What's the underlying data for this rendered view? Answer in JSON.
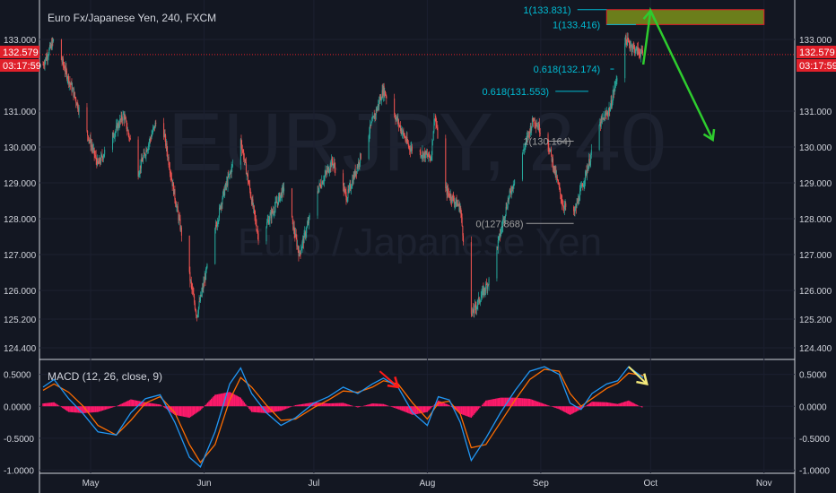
{
  "header": {
    "symbol_title": "Euro Fx/Japanese Yen, 240, FXCM",
    "watermark_symbol": "EURJPY, 240",
    "watermark_name": "Euro / Japanese Yen"
  },
  "price_badges": {
    "last_price": "132.579",
    "countdown": "03:17:59",
    "color": "#e0202a"
  },
  "colors": {
    "background": "#131722",
    "up_candle": "#26a69a",
    "down_candle": "#ef5350",
    "fib_level": "#00bcd4",
    "fib_muted": "#9e9e9e",
    "zone_fill": "#6b7e1b",
    "zone_border": "#e0202a",
    "projection_arrow": "#2ecc2e",
    "macd_line": "#2196f3",
    "signal_line": "#ff6d00",
    "histogram": "#ff1a6b",
    "arrow_red": "#ff1a1a",
    "arrow_yellow": "#f5e97a"
  },
  "annotations": {
    "fib_1_top": "1(133.831)",
    "fib_1_mid": "1(133.416)",
    "fib_0618_upper": "0.618(132.174)",
    "fib_0618_lower": "0.618(131.553)",
    "fib_1_low": "1(130.164)",
    "fib_0_low": "0(127.868)"
  },
  "chart_data": [
    {
      "type": "candlestick",
      "title": "Euro Fx/Japanese Yen, 240, FXCM",
      "y_ticks": [
        "133.000",
        "131.000",
        "130.000",
        "129.000",
        "128.000",
        "127.000",
        "126.000",
        "125.200",
        "124.400"
      ],
      "y_tick_values": [
        133.0,
        131.0,
        130.0,
        129.0,
        128.0,
        127.0,
        126.0,
        125.2,
        124.4
      ],
      "ylim": [
        124.1,
        133.9
      ],
      "x_ticks": [
        "May",
        "Jun",
        "Jul",
        "Aug",
        "Sep",
        "Oct",
        "Nov"
      ],
      "last_price": 132.579,
      "swing_points": [
        {
          "date": "Apr 18",
          "close": 132.3
        },
        {
          "date": "Apr 21",
          "close": 133.0
        },
        {
          "date": "Apr 26",
          "close": 131.6
        },
        {
          "date": "May 3",
          "close": 129.5
        },
        {
          "date": "May 10",
          "close": 130.9
        },
        {
          "date": "May 14",
          "close": 129.3
        },
        {
          "date": "May 20",
          "close": 131.0
        },
        {
          "date": "May 24",
          "close": 128.6
        },
        {
          "date": "May 30",
          "close": 125.3
        },
        {
          "date": "Jun 6",
          "close": 128.6
        },
        {
          "date": "Jun 11",
          "close": 130.2
        },
        {
          "date": "Jun 16",
          "close": 127.4
        },
        {
          "date": "Jun 23",
          "close": 128.9
        },
        {
          "date": "Jun 27",
          "close": 127.0
        },
        {
          "date": "Jul 2",
          "close": 128.8
        },
        {
          "date": "Jul 6",
          "close": 129.6
        },
        {
          "date": "Jul 10",
          "close": 128.6
        },
        {
          "date": "Jul 17",
          "close": 130.7
        },
        {
          "date": "Jul 20",
          "close": 131.6
        },
        {
          "date": "Jul 27",
          "close": 130.0
        },
        {
          "date": "Aug 2",
          "close": 129.7
        },
        {
          "date": "Aug 3",
          "close": 130.9
        },
        {
          "date": "Aug 6",
          "close": 128.8
        },
        {
          "date": "Aug 10",
          "close": 128.3
        },
        {
          "date": "Aug 13",
          "close": 125.3
        },
        {
          "date": "Aug 18",
          "close": 126.3
        },
        {
          "date": "Aug 23",
          "close": 128.5
        },
        {
          "date": "Aug 30",
          "close": 130.8
        },
        {
          "date": "Sep 3",
          "close": 130.1
        },
        {
          "date": "Sep 7",
          "close": 128.4
        },
        {
          "date": "Sep 10",
          "close": 128.1
        },
        {
          "date": "Sep 14",
          "close": 129.5
        },
        {
          "date": "Sep 17",
          "close": 130.6
        },
        {
          "date": "Sep 20",
          "close": 131.1
        },
        {
          "date": "Sep 24",
          "close": 133.0
        },
        {
          "date": "Sep 27",
          "close": 132.7
        },
        {
          "date": "Sep 29",
          "close": 132.6
        }
      ],
      "fib_levels": [
        {
          "label": "1(133.831)",
          "value": 133.831
        },
        {
          "label": "1(133.416)",
          "value": 133.416
        },
        {
          "label": "0.618(132.174)",
          "value": 132.174
        },
        {
          "label": "0.618(131.553)",
          "value": 131.553
        },
        {
          "label": "1(130.164)",
          "value": 130.164
        },
        {
          "label": "0(127.868)",
          "value": 127.868
        }
      ],
      "target_zone": {
        "from_date": "Sep 19",
        "to_date": "Nov 1",
        "y_min": 133.416,
        "y_max": 133.831
      },
      "projection": [
        {
          "date": "Sep 29",
          "value": 132.3
        },
        {
          "date": "Oct 1",
          "value": 133.8
        },
        {
          "date": "Oct 18",
          "value": 130.2
        }
      ]
    },
    {
      "type": "line",
      "title": "MACD (12, 26, close, 9)",
      "y_ticks": [
        "0.5000",
        "0.0000",
        "-0.5000",
        "-1.0000"
      ],
      "y_tick_values": [
        0.5,
        0.0,
        -0.5,
        -1.0
      ],
      "ylim": [
        -1.05,
        0.72
      ],
      "series": [
        {
          "name": "MACD",
          "points": [
            [
              "Apr 18",
              0.3
            ],
            [
              "Apr 21",
              0.42
            ],
            [
              "Apr 25",
              0.12
            ],
            [
              "Apr 29",
              -0.12
            ],
            [
              "May 3",
              -0.4
            ],
            [
              "May 8",
              -0.45
            ],
            [
              "May 12",
              -0.1
            ],
            [
              "May 16",
              0.12
            ],
            [
              "May 20",
              0.18
            ],
            [
              "May 24",
              -0.25
            ],
            [
              "May 28",
              -0.8
            ],
            [
              "May 31",
              -0.95
            ],
            [
              "Jun 4",
              -0.4
            ],
            [
              "Jun 8",
              0.35
            ],
            [
              "Jun 11",
              0.6
            ],
            [
              "Jun 14",
              0.2
            ],
            [
              "Jun 18",
              -0.1
            ],
            [
              "Jun 22",
              -0.3
            ],
            [
              "Jun 26",
              -0.18
            ],
            [
              "Jul 1",
              0.05
            ],
            [
              "Jul 5",
              0.15
            ],
            [
              "Jul 9",
              0.3
            ],
            [
              "Jul 13",
              0.2
            ],
            [
              "Jul 17",
              0.35
            ],
            [
              "Jul 20",
              0.44
            ],
            [
              "Jul 24",
              0.3
            ],
            [
              "Jul 28",
              -0.1
            ],
            [
              "Aug 1",
              -0.3
            ],
            [
              "Aug 4",
              0.15
            ],
            [
              "Aug 7",
              0.1
            ],
            [
              "Aug 10",
              -0.25
            ],
            [
              "Aug 13",
              -0.85
            ],
            [
              "Aug 17",
              -0.5
            ],
            [
              "Aug 21",
              -0.1
            ],
            [
              "Aug 25",
              0.25
            ],
            [
              "Aug 29",
              0.55
            ],
            [
              "Sep 2",
              0.62
            ],
            [
              "Sep 6",
              0.5
            ],
            [
              "Sep 9",
              0.05
            ],
            [
              "Sep 12",
              -0.05
            ],
            [
              "Sep 15",
              0.2
            ],
            [
              "Sep 19",
              0.35
            ],
            [
              "Sep 22",
              0.4
            ],
            [
              "Sep 25",
              0.62
            ],
            [
              "Sep 29",
              0.45
            ]
          ]
        },
        {
          "name": "Signal",
          "points": [
            [
              "Apr 18",
              0.25
            ],
            [
              "Apr 21",
              0.35
            ],
            [
              "Apr 25",
              0.22
            ],
            [
              "Apr 29",
              0.0
            ],
            [
              "May 3",
              -0.3
            ],
            [
              "May 8",
              -0.45
            ],
            [
              "May 12",
              -0.22
            ],
            [
              "May 16",
              0.05
            ],
            [
              "May 20",
              0.15
            ],
            [
              "May 24",
              -0.1
            ],
            [
              "May 28",
              -0.6
            ],
            [
              "May 31",
              -0.88
            ],
            [
              "Jun 4",
              -0.6
            ],
            [
              "Jun 8",
              0.1
            ],
            [
              "Jun 11",
              0.45
            ],
            [
              "Jun 14",
              0.3
            ],
            [
              "Jun 18",
              0.02
            ],
            [
              "Jun 22",
              -0.22
            ],
            [
              "Jun 26",
              -0.2
            ],
            [
              "Jul 1",
              -0.02
            ],
            [
              "Jul 5",
              0.1
            ],
            [
              "Jul 9",
              0.24
            ],
            [
              "Jul 13",
              0.22
            ],
            [
              "Jul 17",
              0.3
            ],
            [
              "Jul 20",
              0.4
            ],
            [
              "Jul 24",
              0.35
            ],
            [
              "Jul 28",
              0.05
            ],
            [
              "Aug 1",
              -0.2
            ],
            [
              "Aug 4",
              0.05
            ],
            [
              "Aug 7",
              0.08
            ],
            [
              "Aug 10",
              -0.12
            ],
            [
              "Aug 13",
              -0.65
            ],
            [
              "Aug 17",
              -0.6
            ],
            [
              "Aug 21",
              -0.25
            ],
            [
              "Aug 25",
              0.1
            ],
            [
              "Aug 29",
              0.42
            ],
            [
              "Sep 2",
              0.58
            ],
            [
              "Sep 6",
              0.55
            ],
            [
              "Sep 9",
              0.2
            ],
            [
              "Sep 12",
              0.0
            ],
            [
              "Sep 15",
              0.12
            ],
            [
              "Sep 19",
              0.28
            ],
            [
              "Sep 22",
              0.36
            ],
            [
              "Sep 25",
              0.52
            ],
            [
              "Sep 29",
              0.48
            ]
          ]
        }
      ],
      "arrows": [
        {
          "color": "red",
          "from": [
            "Jul 19",
            0.55
          ],
          "to": [
            "Jul 24",
            0.3
          ]
        },
        {
          "color": "yellow",
          "from": [
            "Sep 25",
            0.62
          ],
          "to": [
            "Sep 30",
            0.35
          ]
        }
      ]
    }
  ]
}
